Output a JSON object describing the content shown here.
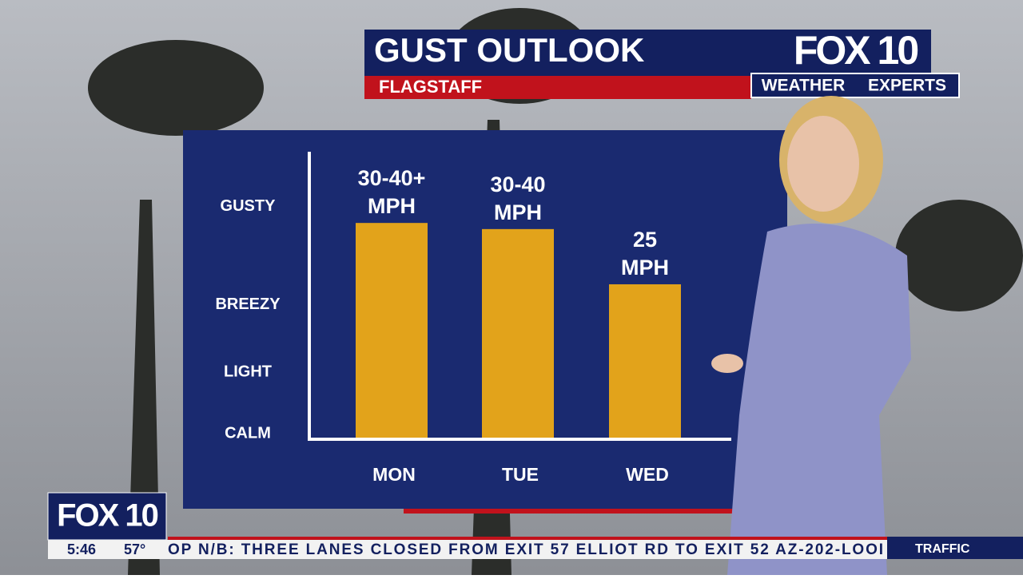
{
  "chart_data": {
    "type": "bar",
    "title": "GUST OUTLOOK",
    "subtitle": "FLAGSTAFF",
    "categories": [
      "MON",
      "TUE",
      "WED"
    ],
    "values": [
      35,
      34,
      25
    ],
    "value_labels": [
      "30-40+ MPH",
      "30-40 MPH",
      "25 MPH"
    ],
    "color": "#e2a31b",
    "ylim": [
      0,
      47
    ],
    "yticks": [
      {
        "value": 0,
        "label": "CALM"
      },
      {
        "value": 10,
        "label": "LIGHT"
      },
      {
        "value": 21,
        "label": "BREEZY"
      },
      {
        "value": 37,
        "label": "GUSTY"
      }
    ],
    "grid": false
  },
  "broadcast": {
    "logo": "FOX 10",
    "brand": "WEATHER",
    "brand2": "EXPERTS",
    "bug_logo": "FOX 10",
    "time": "5:46",
    "temperature": "57°",
    "ticker": "OP N/B: THREE LANES CLOSED FROM EXIT 57 ELLIOT RD TO EXIT 52 AZ-202-LOOI",
    "ticker_tag": "TRAFFIC"
  }
}
